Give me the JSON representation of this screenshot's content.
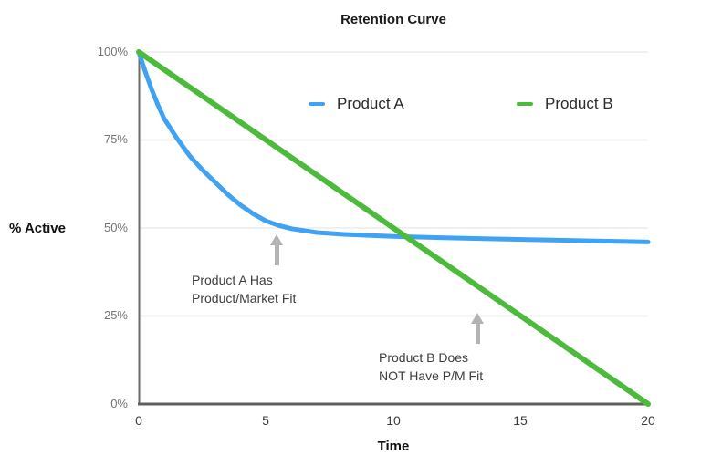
{
  "chart_data": {
    "type": "line",
    "title": "Retention Curve",
    "xlabel": "Time",
    "ylabel": "% Active",
    "xlim": [
      0,
      20
    ],
    "ylim": [
      0,
      100
    ],
    "x_ticks": [
      0,
      5,
      10,
      15,
      20
    ],
    "x_tick_labels": [
      "0",
      "5",
      "10",
      "15",
      "20"
    ],
    "y_ticks": [
      100,
      75,
      50,
      25,
      0
    ],
    "y_tick_labels": [
      "100%",
      "75%",
      "50%",
      "25%",
      "0%"
    ],
    "grid": "horizontal-light",
    "legend_position": "top-inside",
    "series": [
      {
        "name": "Product A",
        "color": "#3FA2F3",
        "x": [
          0,
          0.25,
          0.5,
          0.75,
          1,
          1.5,
          2,
          2.5,
          3,
          3.5,
          4,
          4.5,
          5,
          5.5,
          6,
          7,
          8,
          9,
          10,
          12,
          14,
          16,
          18,
          20
        ],
        "y": [
          100,
          94.5,
          89.5,
          85,
          81,
          75.5,
          70.5,
          66.5,
          63,
          59.5,
          56.5,
          54,
          52,
          50.7,
          49.8,
          48.7,
          48.2,
          47.9,
          47.6,
          47.2,
          46.9,
          46.6,
          46.3,
          46
        ]
      },
      {
        "name": "Product B",
        "color": "#4CBB3C",
        "x": [
          0,
          20
        ],
        "y": [
          100,
          0
        ]
      }
    ],
    "annotations": [
      {
        "lines": [
          "Product A Has",
          "Product/Market Fit"
        ],
        "arrow": "up",
        "arrow_color": "#b3b3b3",
        "points_to": {
          "x": 5.4,
          "y": 51
        }
      },
      {
        "lines": [
          "Product B Does",
          "NOT Have P/M Fit"
        ],
        "arrow": "up",
        "arrow_color": "#b3b3b3",
        "points_to": {
          "x": 13.3,
          "y": 33.5
        }
      }
    ],
    "axis_color": "#666666",
    "gridline_color": "#f0f0f0"
  }
}
